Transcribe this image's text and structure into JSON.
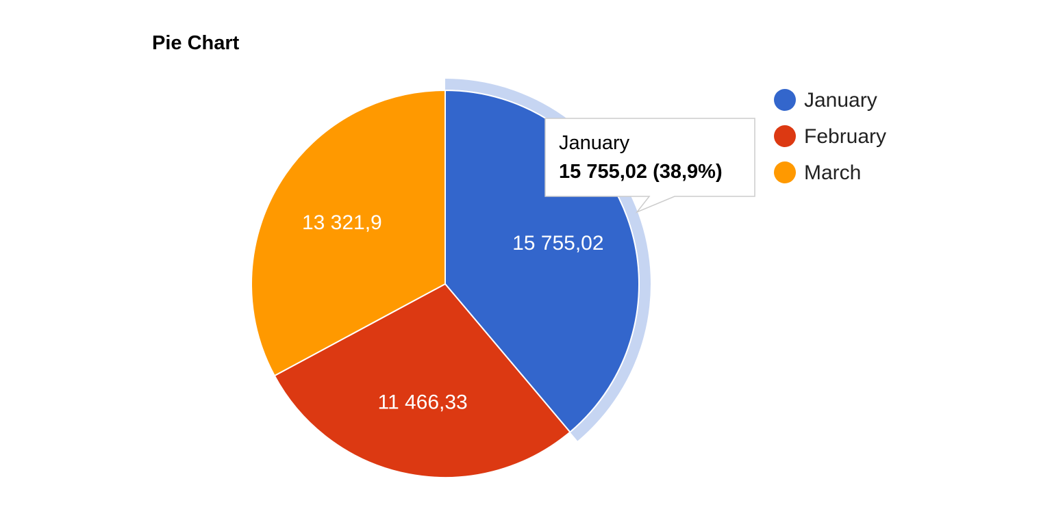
{
  "chart_data": {
    "type": "pie",
    "title": "Pie Chart",
    "slices": [
      {
        "label": "January",
        "value": 15755.02,
        "value_label": "15 755,02",
        "color": "#3366cc"
      },
      {
        "label": "February",
        "value": 11466.33,
        "value_label": "11 466,33",
        "color": "#dc3912"
      },
      {
        "label": "March",
        "value": 13321.9,
        "value_label": "13 321,9",
        "color": "#ff9900"
      }
    ],
    "legend_position": "right",
    "highlighted_slice": "January",
    "highlight_color": "#c6d5f2",
    "tooltip": {
      "name": "January",
      "value": "15 755,02 (38,9%)"
    }
  }
}
